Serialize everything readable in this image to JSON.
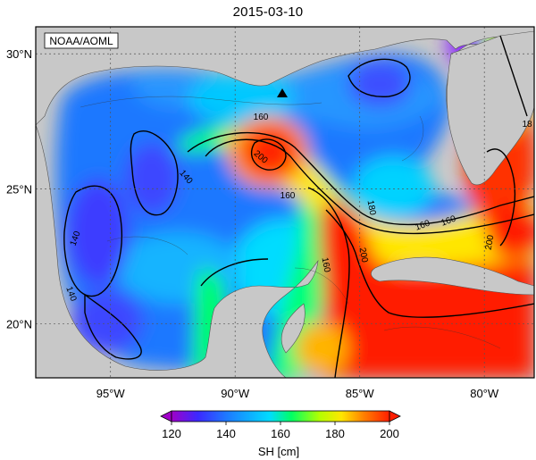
{
  "title": "2015-03-10",
  "credit": "NOAA/AOML",
  "lat_labels": [
    "30°N",
    "25°N",
    "20°N"
  ],
  "lon_labels": [
    "95°W",
    "90°W",
    "85°W",
    "80°W"
  ],
  "lat_values": [
    30,
    25,
    20
  ],
  "lon_values": [
    -95,
    -90,
    -85,
    -80
  ],
  "extent": {
    "lon": [
      -98,
      -78
    ],
    "lat": [
      18,
      31
    ]
  },
  "contour_labels": [
    "160",
    "18",
    "200",
    "160",
    "140",
    "140",
    "140",
    "180",
    "160",
    "200",
    "160",
    "200",
    "160"
  ],
  "colorbar": {
    "ticks": [
      "120",
      "140",
      "160",
      "180",
      "200"
    ],
    "label": "SH [cm]",
    "range": [
      120,
      200
    ],
    "colors": [
      "#a000c8",
      "#3c28ff",
      "#1e78ff",
      "#00dcff",
      "#00ff64",
      "#b4ff00",
      "#ffe600",
      "#ff8200",
      "#ff1e00"
    ]
  },
  "land_color": "#c8c8c8",
  "marker": {
    "symbol": "triangle",
    "lon": -88.4,
    "lat": 28.7
  }
}
